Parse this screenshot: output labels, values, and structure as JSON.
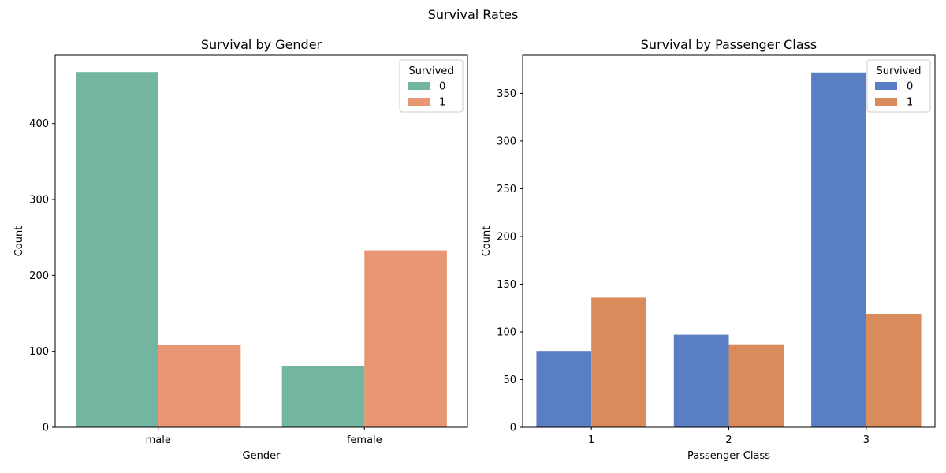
{
  "figure": {
    "suptitle": "Survival Rates"
  },
  "chart_data": [
    {
      "type": "bar",
      "title": "Survival by Gender",
      "xlabel": "Gender",
      "ylabel": "Count",
      "categories": [
        "male",
        "female"
      ],
      "ylim": [
        0,
        490
      ],
      "yticks": [
        0,
        100,
        200,
        300,
        400
      ],
      "grid": false,
      "legend": {
        "title": "Survived",
        "placement": "top-right"
      },
      "series": [
        {
          "name": "0",
          "color": "#72b6a1",
          "values": [
            468,
            81
          ]
        },
        {
          "name": "1",
          "color": "#e99675",
          "values": [
            109,
            233
          ]
        }
      ]
    },
    {
      "type": "bar",
      "title": "Survival by Passenger Class",
      "xlabel": "Passenger Class",
      "ylabel": "Count",
      "categories": [
        "1",
        "2",
        "3"
      ],
      "ylim": [
        0,
        390
      ],
      "yticks": [
        0,
        50,
        100,
        150,
        200,
        250,
        300,
        350
      ],
      "grid": false,
      "legend": {
        "title": "Survived",
        "placement": "top-right"
      },
      "series": [
        {
          "name": "0",
          "color": "#5a7ec3",
          "values": [
            80,
            97,
            372
          ]
        },
        {
          "name": "1",
          "color": "#d98b5b",
          "values": [
            136,
            87,
            119
          ]
        }
      ]
    }
  ]
}
